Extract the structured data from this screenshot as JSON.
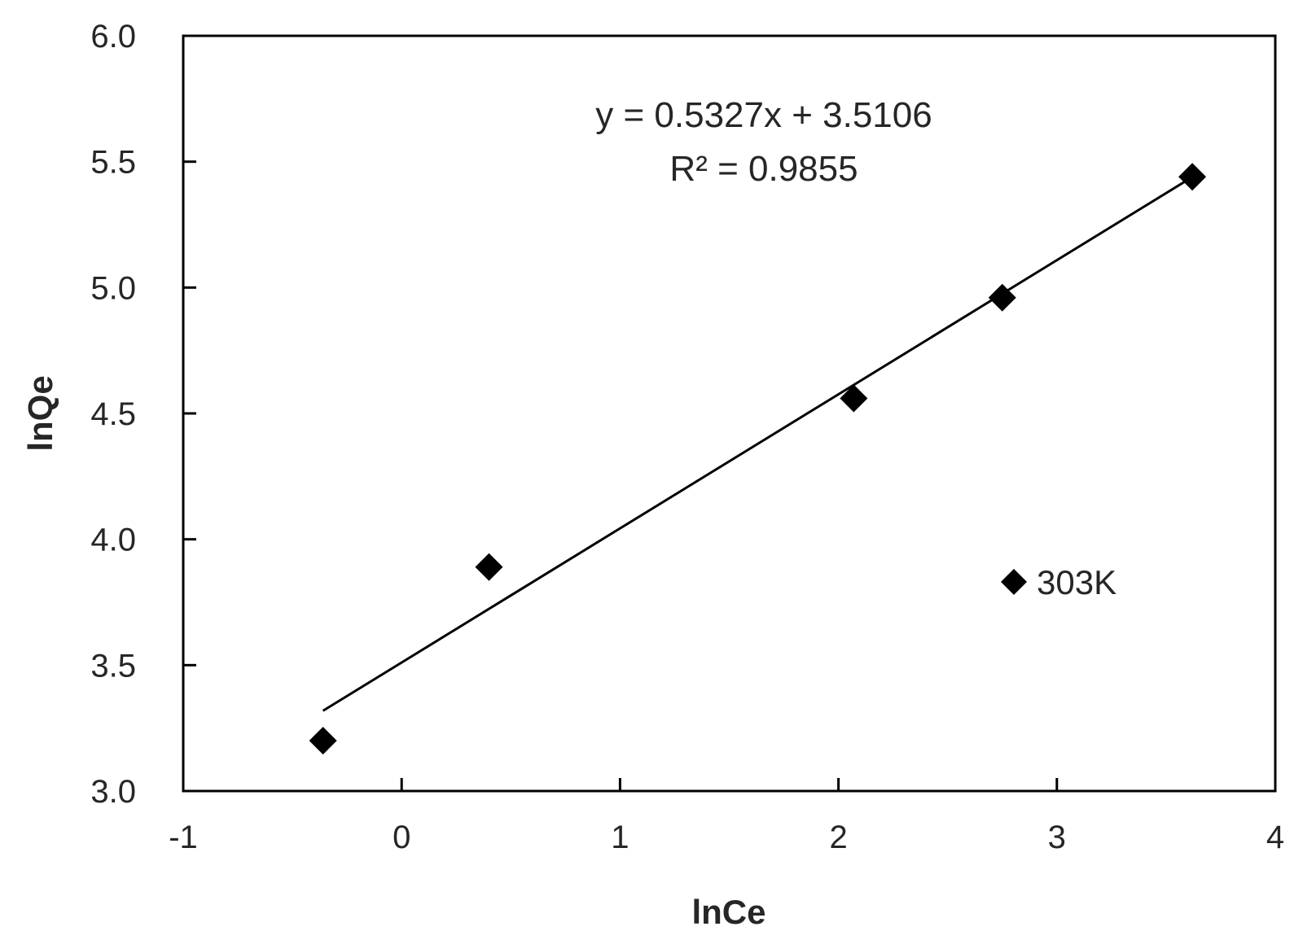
{
  "chart_data": {
    "type": "scatter",
    "title": "",
    "xlabel": "lnCe",
    "ylabel": "lnQe",
    "xlim": [
      -1,
      4
    ],
    "ylim": [
      3.0,
      6.0
    ],
    "x_ticks": [
      "-1",
      "0",
      "1",
      "2",
      "3",
      "4"
    ],
    "y_ticks": [
      "3.0",
      "3.5",
      "4.0",
      "4.5",
      "5.0",
      "5.5",
      "6.0"
    ],
    "grid": false,
    "series": [
      {
        "name": "303K",
        "marker": "diamond",
        "color": "#000000",
        "points": [
          {
            "x": -0.36,
            "y": 3.2
          },
          {
            "x": 0.4,
            "y": 3.89
          },
          {
            "x": 2.07,
            "y": 4.56
          },
          {
            "x": 2.75,
            "y": 4.96
          },
          {
            "x": 3.62,
            "y": 5.44
          }
        ]
      }
    ],
    "trendline": {
      "type": "linear",
      "slope": 0.5327,
      "intercept": 3.5106,
      "x_range": [
        -0.36,
        3.62
      ],
      "color": "#000000"
    },
    "annotations": {
      "equation": "y = 0.5327x + 3.5106",
      "r_squared": "R² = 0.9855"
    },
    "legend": {
      "label": "303K",
      "placement": "inside-bottom-right"
    }
  }
}
